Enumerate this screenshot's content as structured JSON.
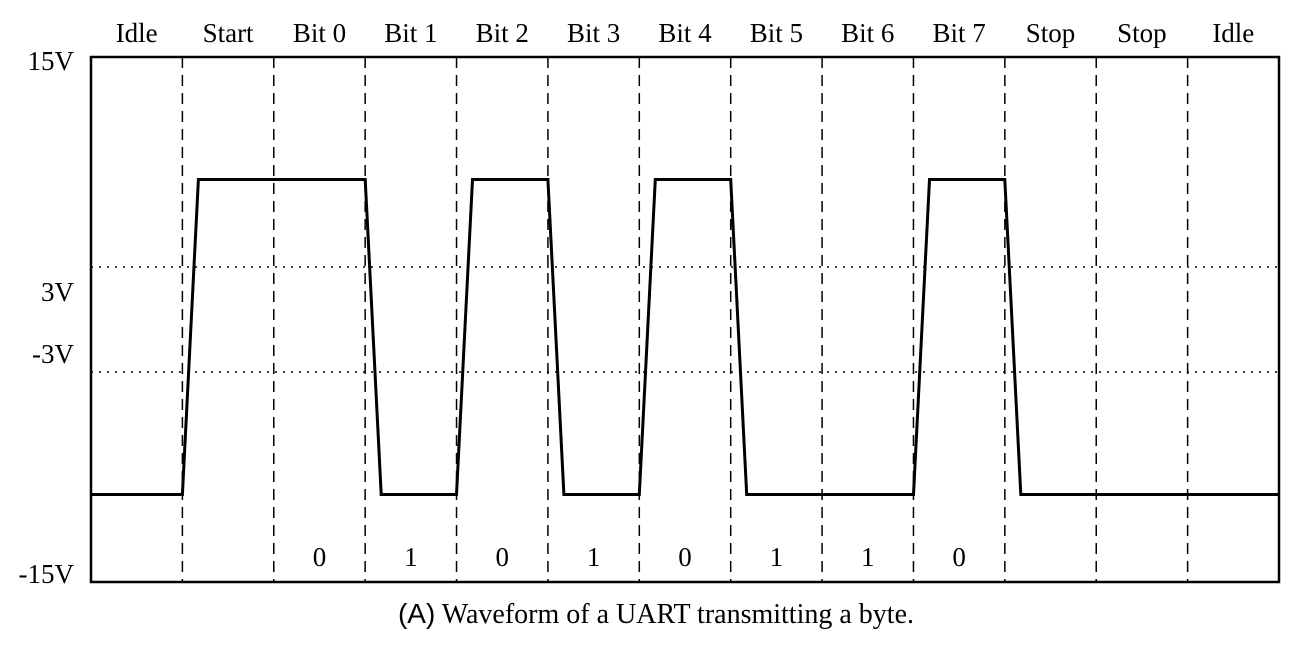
{
  "diagram": {
    "slot_labels": [
      "Idle",
      "Start",
      "Bit 0",
      "Bit 1",
      "Bit 2",
      "Bit 3",
      "Bit 4",
      "Bit 5",
      "Bit 6",
      "Bit 7",
      "Stop",
      "Stop",
      "Idle"
    ],
    "bit_values": [
      "0",
      "1",
      "0",
      "1",
      "0",
      "1",
      "1",
      "0"
    ],
    "voltage_labels": {
      "top": "15V",
      "threshold_high": "3V",
      "threshold_low": "-3V",
      "bottom": "-15V"
    },
    "voltage_range": [
      -15,
      15
    ],
    "thresholds": [
      3,
      -3
    ],
    "signal_levels": {
      "high": 8,
      "low": -10
    },
    "line_color": "#000000"
  },
  "caption": {
    "tag": "(A)",
    "text": " Waveform of a UART transmitting a byte."
  }
}
